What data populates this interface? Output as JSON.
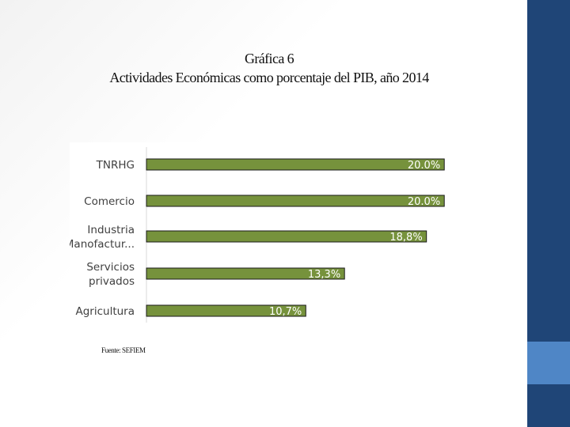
{
  "title": {
    "line1": "Gráfica 6",
    "line2": "Actividades Económicas como porcentaje del PIB, año 2014"
  },
  "source": "Fuente: SEFIEM",
  "colors": {
    "bar": "#76923c",
    "bar_border": "#1a1a1a",
    "side_dark": "#1f4577",
    "side_light": "#4f86c6"
  },
  "chart_data": {
    "type": "bar",
    "orientation": "horizontal",
    "categories": [
      [
        "TNRHG"
      ],
      [
        "Comercio"
      ],
      [
        "Industria",
        "Manofactur..."
      ],
      [
        "Servicios",
        "privados"
      ],
      [
        "Agricultura"
      ]
    ],
    "values": [
      20.0,
      20.0,
      18.8,
      13.3,
      10.7
    ],
    "data_labels": [
      "20.0%",
      "20.0%",
      "18,8%",
      "13,3%",
      "10,7%"
    ],
    "xlim": [
      0,
      20.2
    ],
    "grid": false
  }
}
